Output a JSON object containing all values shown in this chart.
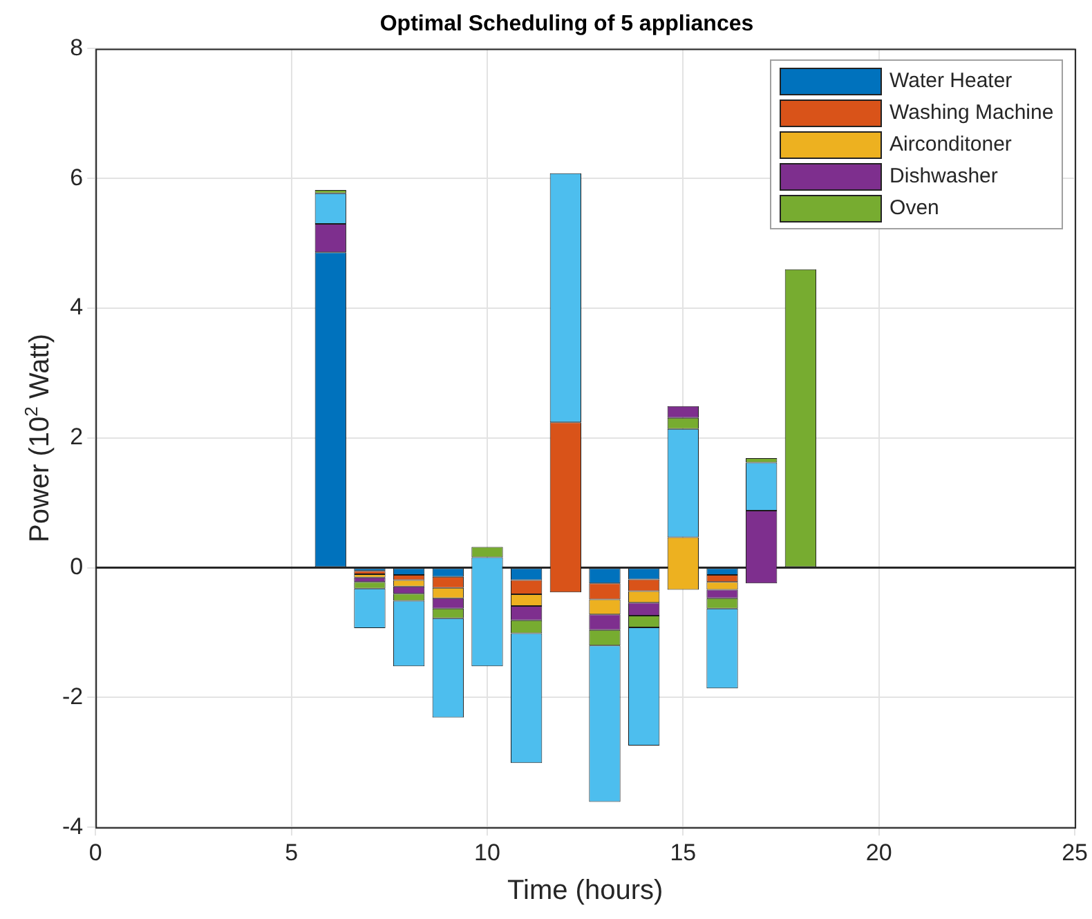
{
  "chart_data": {
    "type": "bar",
    "title": "Optimal Scheduling of 5 appliances",
    "xlabel": "Time (hours)",
    "ylabel": "Power (10$^{2}$ Watt)",
    "x": [
      6,
      7,
      8,
      9,
      10,
      11,
      12,
      13,
      14,
      15,
      16,
      17,
      18
    ],
    "series": [
      {
        "name": "Water Heater",
        "color": "#0072bd",
        "base": [
          0,
          0,
          0,
          0,
          null,
          0,
          null,
          0,
          0,
          null,
          0,
          null,
          null
        ],
        "values": [
          4.86,
          -0.05,
          -0.11,
          -0.14,
          null,
          -0.19,
          null,
          -0.24,
          -0.18,
          null,
          -0.11,
          null,
          null
        ]
      },
      {
        "name": "Washing Machine",
        "color": "#d95319",
        "base": [
          null,
          -0.05,
          -0.11,
          -0.14,
          null,
          -0.19,
          -0.38,
          -0.24,
          -0.18,
          null,
          -0.11,
          null,
          null
        ],
        "values": [
          null,
          -0.05,
          -0.08,
          -0.17,
          null,
          -0.22,
          2.62,
          -0.25,
          -0.18,
          null,
          -0.11,
          null,
          null
        ]
      },
      {
        "name": "Airconditoner",
        "color": "#edb120",
        "base": [
          null,
          -0.1,
          -0.19,
          -0.31,
          null,
          -0.41,
          null,
          -0.49,
          -0.36,
          -0.34,
          -0.22,
          null,
          null
        ],
        "values": [
          null,
          -0.05,
          -0.1,
          -0.16,
          null,
          -0.18,
          null,
          -0.23,
          -0.18,
          0.81,
          -0.12,
          null,
          null
        ]
      },
      {
        "name": "Dishwasher",
        "color": "#7e2f8e",
        "base": [
          4.86,
          -0.15,
          -0.29,
          -0.47,
          null,
          -0.59,
          null,
          -0.72,
          -0.54,
          2.31,
          -0.34,
          -0.24,
          null
        ],
        "values": [
          0.44,
          -0.07,
          -0.11,
          -0.16,
          null,
          -0.22,
          null,
          -0.24,
          -0.2,
          0.18,
          -0.13,
          1.12,
          null
        ]
      },
      {
        "name": "Oven",
        "color": "#77ac30",
        "base": [
          5.77,
          -0.22,
          -0.4,
          -0.63,
          0.16,
          -0.81,
          null,
          -0.96,
          -0.74,
          2.14,
          -0.47,
          1.62,
          0
        ],
        "values": [
          0.05,
          -0.1,
          -0.11,
          -0.15,
          0.16,
          -0.2,
          null,
          -0.24,
          -0.18,
          0.17,
          -0.16,
          0.07,
          4.6
        ]
      },
      {
        "color": "#4dbeee",
        "base": [
          5.3,
          -0.32,
          -0.51,
          -0.78,
          0.16,
          -1.01,
          2.24,
          -1.2,
          -0.92,
          0.47,
          -0.63,
          0.88,
          null
        ],
        "values": [
          0.47,
          -0.61,
          -1.01,
          -1.53,
          -1.68,
          -2.0,
          3.84,
          -2.41,
          -1.82,
          1.67,
          -1.23,
          0.74,
          null
        ]
      }
    ],
    "xlim": [
      0,
      25
    ],
    "xticks": [
      0,
      5,
      10,
      15,
      20,
      25
    ],
    "ylim": [
      -4,
      8
    ],
    "yticks": [
      -4,
      -2,
      0,
      2,
      4,
      6,
      8
    ],
    "ref_lines": [
      {
        "axis": "y",
        "value": 0,
        "color": "#262626"
      }
    ],
    "grid": true,
    "legend": "top right"
  }
}
